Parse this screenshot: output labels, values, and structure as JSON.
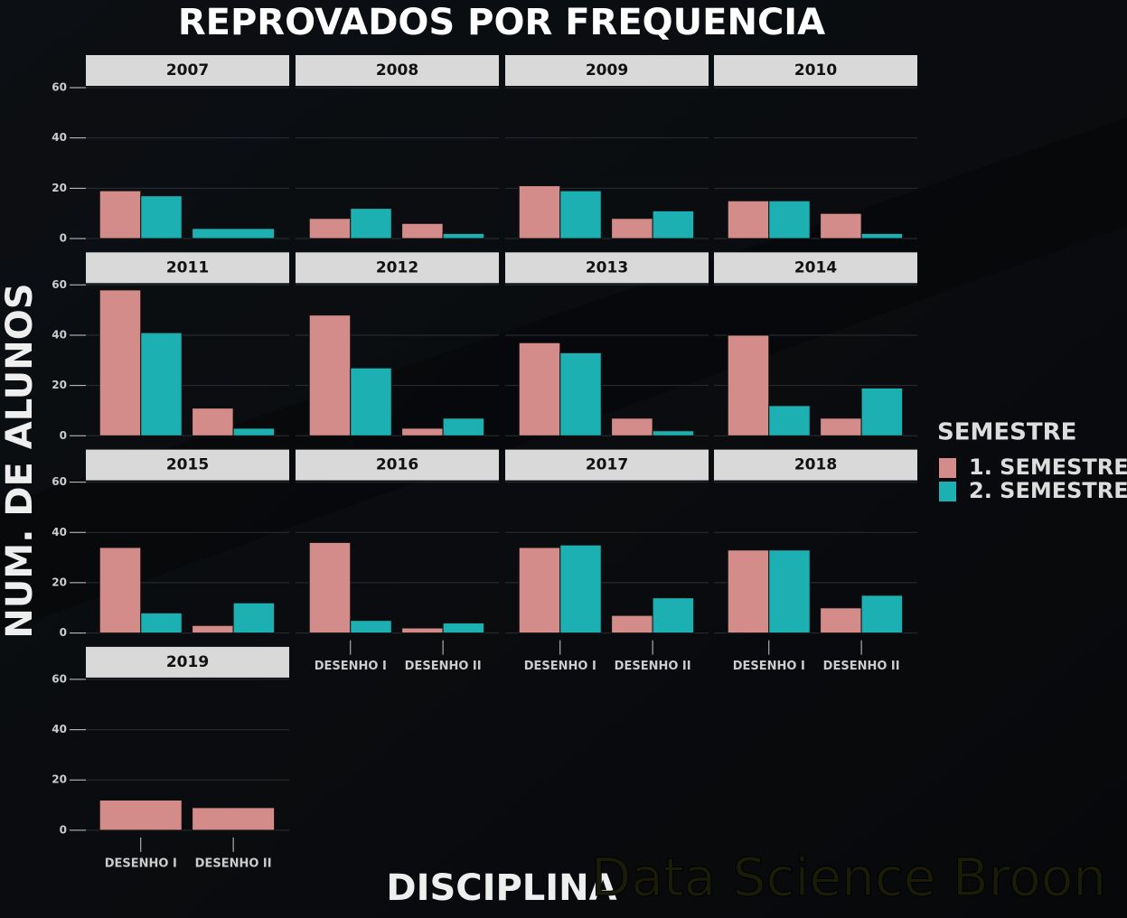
{
  "chart_data": {
    "type": "bar",
    "title": "REPROVADOS POR FREQUENCIA",
    "xlabel": "DISCIPLINA",
    "ylabel": "NUM. DE ALUNOS",
    "legend_title": "SEMESTRE",
    "watermark": "Data Science Broon",
    "categories": [
      "DESENHO I",
      "DESENHO II"
    ],
    "series": [
      {
        "name": "1. SEMESTRE",
        "color": "#d48c8a"
      },
      {
        "name": "2. SEMESTRE",
        "color": "#1cb0b2"
      }
    ],
    "ylim": [
      0,
      60
    ],
    "yticks": [
      0,
      20,
      40,
      60
    ],
    "grid": true,
    "facets": [
      {
        "title": "2007",
        "values": [
          [
            19,
            null
          ],
          [
            17,
            4
          ]
        ]
      },
      {
        "title": "2008",
        "values": [
          [
            8,
            6
          ],
          [
            12,
            2
          ]
        ]
      },
      {
        "title": "2009",
        "values": [
          [
            21,
            8
          ],
          [
            19,
            11
          ]
        ]
      },
      {
        "title": "2010",
        "values": [
          [
            15,
            10
          ],
          [
            15,
            2
          ]
        ]
      },
      {
        "title": "2011",
        "values": [
          [
            58,
            11
          ],
          [
            41,
            3
          ]
        ]
      },
      {
        "title": "2012",
        "values": [
          [
            48,
            3
          ],
          [
            27,
            7
          ]
        ]
      },
      {
        "title": "2013",
        "values": [
          [
            37,
            7
          ],
          [
            33,
            2
          ]
        ]
      },
      {
        "title": "2014",
        "values": [
          [
            40,
            7
          ],
          [
            12,
            19
          ]
        ]
      },
      {
        "title": "2015",
        "values": [
          [
            34,
            3
          ],
          [
            8,
            12
          ]
        ]
      },
      {
        "title": "2016",
        "values": [
          [
            36,
            2
          ],
          [
            5,
            4
          ]
        ]
      },
      {
        "title": "2017",
        "values": [
          [
            34,
            7
          ],
          [
            35,
            14
          ]
        ]
      },
      {
        "title": "2018",
        "values": [
          [
            33,
            10
          ],
          [
            33,
            15
          ]
        ]
      },
      {
        "title": "2019",
        "values": [
          [
            12,
            9
          ],
          [
            null,
            null
          ]
        ]
      }
    ]
  }
}
